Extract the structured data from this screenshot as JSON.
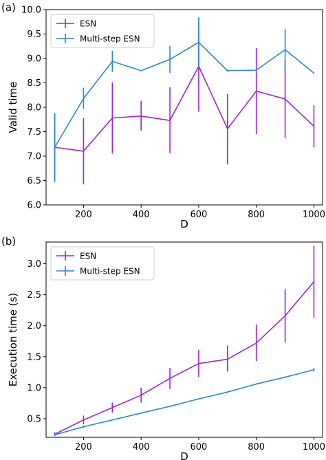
{
  "colors": {
    "esn": "#9B24D8",
    "multi": "#2C86D1",
    "frame": "#000000",
    "legend_border": "#cccccc"
  },
  "chart_data": [
    {
      "panel_label": "(a)",
      "type": "line",
      "xlabel": "D",
      "ylabel": "Valid time",
      "xlim": [
        70,
        1030
      ],
      "ylim": [
        6.0,
        10.0
      ],
      "xticks": [
        200,
        400,
        600,
        800,
        1000
      ],
      "yticks": [
        6.0,
        6.5,
        7.0,
        7.5,
        8.0,
        8.5,
        9.0,
        9.5,
        10.0
      ],
      "ytick_decimals": 1,
      "legend_position": "top-left",
      "grid": false,
      "x": [
        100,
        200,
        300,
        400,
        500,
        600,
        700,
        800,
        900,
        1000
      ],
      "series": [
        {
          "name": "ESN",
          "color_key": "esn",
          "values": [
            7.18,
            7.1,
            7.78,
            7.82,
            7.73,
            8.84,
            7.56,
            8.33,
            8.17,
            7.61
          ],
          "err_low": [
            6.47,
            6.42,
            7.05,
            7.52,
            7.06,
            7.91,
            6.83,
            7.45,
            7.37,
            7.18
          ],
          "err_high": [
            7.88,
            7.78,
            8.51,
            8.13,
            8.41,
            9.84,
            8.27,
            9.21,
            8.97,
            8.04
          ]
        },
        {
          "name": "Multi-step ESN",
          "color_key": "multi",
          "values": [
            7.18,
            8.18,
            8.94,
            8.75,
            8.98,
            9.33,
            8.75,
            8.76,
            9.18,
            8.7
          ],
          "err_low": [
            6.47,
            7.97,
            8.72,
            8.74,
            8.7,
            8.82,
            8.73,
            8.74,
            8.77,
            8.69
          ],
          "err_high": [
            7.88,
            8.4,
            9.16,
            8.76,
            9.26,
            9.84,
            8.77,
            8.78,
            9.6,
            8.71
          ]
        }
      ]
    },
    {
      "panel_label": "(b)",
      "type": "line",
      "xlabel": "D",
      "ylabel": "Execution time (s)",
      "xlim": [
        70,
        1030
      ],
      "ylim": [
        0.2,
        3.35
      ],
      "xticks": [
        200,
        400,
        600,
        800,
        1000
      ],
      "yticks": [
        0.5,
        1.0,
        1.5,
        2.0,
        2.5,
        3.0
      ],
      "ytick_decimals": 1,
      "legend_position": "top-left",
      "grid": false,
      "x": [
        100,
        200,
        300,
        400,
        500,
        600,
        700,
        800,
        900,
        1000
      ],
      "series": [
        {
          "name": "ESN",
          "color_key": "esn",
          "values": [
            0.25,
            0.48,
            0.68,
            0.88,
            1.15,
            1.39,
            1.46,
            1.72,
            2.16,
            2.71
          ],
          "err_low": [
            0.22,
            0.41,
            0.6,
            0.76,
            0.98,
            1.17,
            1.26,
            1.43,
            1.73,
            2.13
          ],
          "err_high": [
            0.28,
            0.55,
            0.76,
            1.0,
            1.32,
            1.61,
            1.68,
            2.02,
            2.59,
            3.29
          ]
        },
        {
          "name": "Multi-step ESN",
          "color_key": "multi",
          "values": [
            0.24,
            0.37,
            0.48,
            0.59,
            0.7,
            0.82,
            0.93,
            1.06,
            1.17,
            1.29
          ],
          "err_low": [
            0.22,
            0.35,
            0.47,
            0.58,
            0.69,
            0.81,
            0.92,
            1.05,
            1.16,
            1.26
          ],
          "err_high": [
            0.26,
            0.39,
            0.49,
            0.6,
            0.71,
            0.83,
            0.94,
            1.07,
            1.18,
            1.32
          ]
        }
      ]
    }
  ]
}
